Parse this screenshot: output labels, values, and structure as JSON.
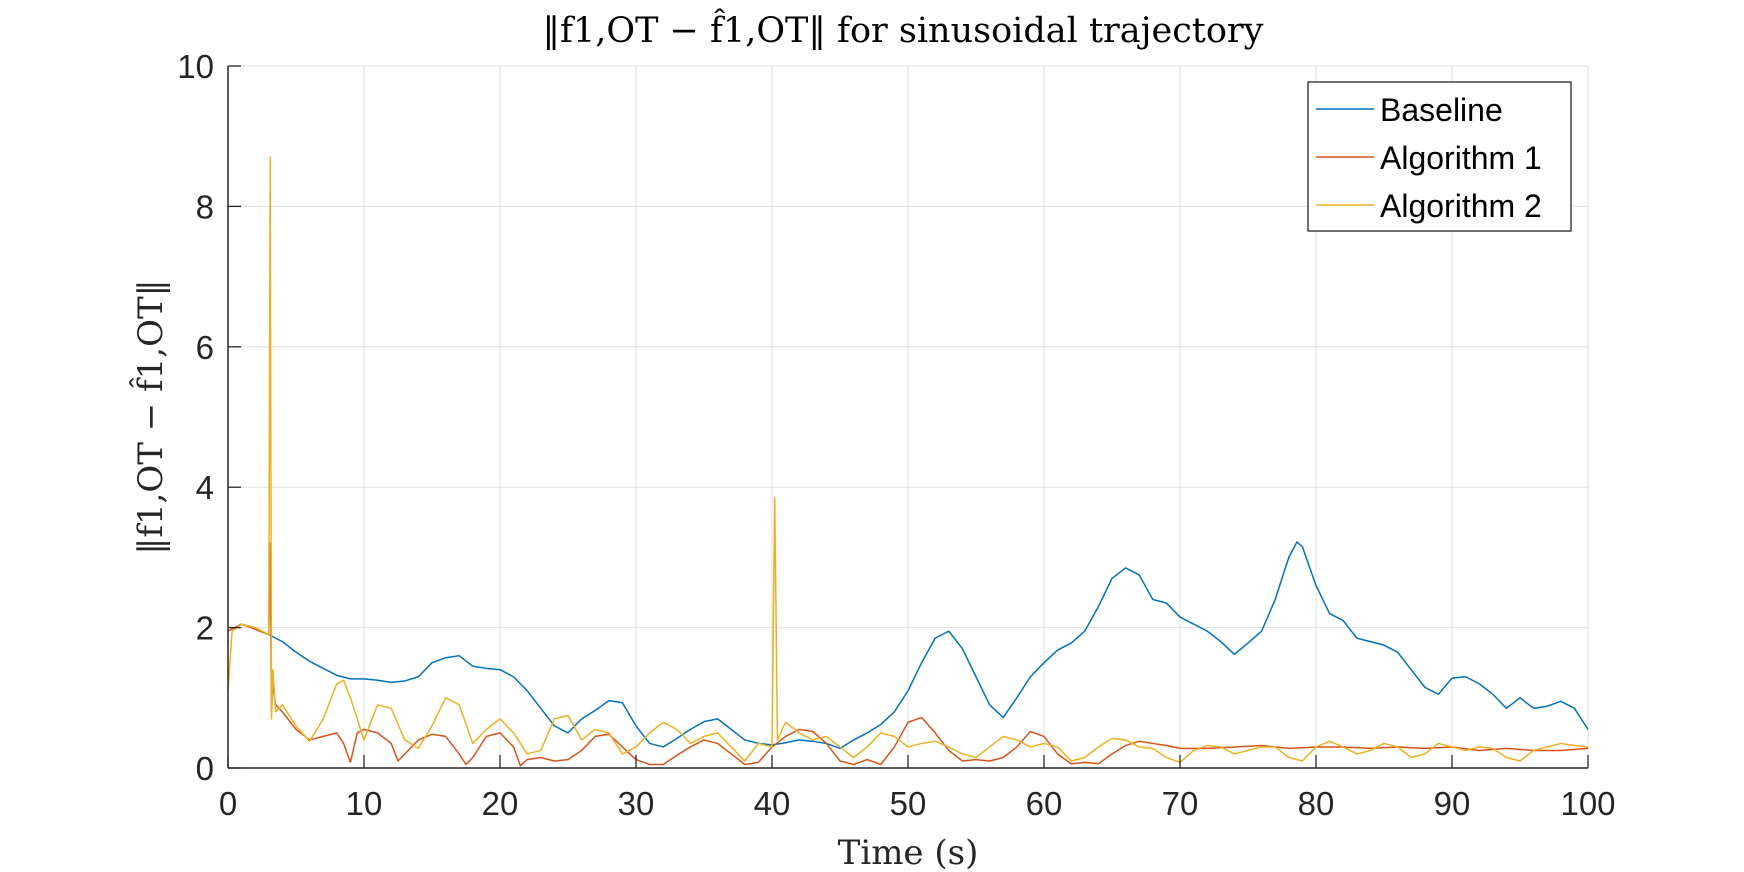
{
  "chart_data": {
    "type": "line",
    "title": "‖f1,OT − f̂1,OT‖ for sinusoidal trajectory",
    "xlabel": "Time (s)",
    "ylabel": "‖f1,OT − f̂1,OT‖",
    "xlim": [
      0,
      100
    ],
    "ylim": [
      0,
      10
    ],
    "xticks": [
      0,
      10,
      20,
      30,
      40,
      50,
      60,
      70,
      80,
      90,
      100
    ],
    "yticks": [
      0,
      2,
      4,
      6,
      8,
      10
    ],
    "grid": true,
    "legend_position": "top-right",
    "series": [
      {
        "name": "Baseline",
        "color": "#0072BD",
        "points": [
          [
            0,
            1.95
          ],
          [
            1,
            2.05
          ],
          [
            2,
            1.98
          ],
          [
            3,
            1.9
          ],
          [
            4,
            1.8
          ],
          [
            5,
            1.65
          ],
          [
            6,
            1.52
          ],
          [
            7,
            1.42
          ],
          [
            8,
            1.32
          ],
          [
            9,
            1.27
          ],
          [
            10,
            1.27
          ],
          [
            11,
            1.25
          ],
          [
            12,
            1.22
          ],
          [
            13,
            1.24
          ],
          [
            14,
            1.3
          ],
          [
            15,
            1.5
          ],
          [
            16,
            1.57
          ],
          [
            17,
            1.6
          ],
          [
            18,
            1.45
          ],
          [
            19,
            1.42
          ],
          [
            20,
            1.4
          ],
          [
            21,
            1.3
          ],
          [
            22,
            1.1
          ],
          [
            23,
            0.85
          ],
          [
            24,
            0.6
          ],
          [
            25,
            0.5
          ],
          [
            26,
            0.7
          ],
          [
            27,
            0.82
          ],
          [
            28,
            0.96
          ],
          [
            29,
            0.93
          ],
          [
            30,
            0.6
          ],
          [
            31,
            0.35
          ],
          [
            32,
            0.3
          ],
          [
            33,
            0.42
          ],
          [
            34,
            0.55
          ],
          [
            35,
            0.66
          ],
          [
            36,
            0.7
          ],
          [
            37,
            0.55
          ],
          [
            38,
            0.4
          ],
          [
            39,
            0.35
          ],
          [
            40,
            0.33
          ],
          [
            41,
            0.36
          ],
          [
            42,
            0.4
          ],
          [
            43,
            0.38
          ],
          [
            44,
            0.35
          ],
          [
            45,
            0.28
          ],
          [
            46,
            0.4
          ],
          [
            47,
            0.5
          ],
          [
            48,
            0.62
          ],
          [
            49,
            0.8
          ],
          [
            50,
            1.1
          ],
          [
            51,
            1.5
          ],
          [
            52,
            1.85
          ],
          [
            53,
            1.95
          ],
          [
            54,
            1.7
          ],
          [
            55,
            1.3
          ],
          [
            56,
            0.9
          ],
          [
            57,
            0.72
          ],
          [
            58,
            1.0
          ],
          [
            59,
            1.3
          ],
          [
            60,
            1.5
          ],
          [
            61,
            1.68
          ],
          [
            62,
            1.78
          ],
          [
            63,
            1.95
          ],
          [
            64,
            2.3
          ],
          [
            65,
            2.7
          ],
          [
            66,
            2.85
          ],
          [
            67,
            2.75
          ],
          [
            68,
            2.4
          ],
          [
            69,
            2.35
          ],
          [
            70,
            2.15
          ],
          [
            71,
            2.05
          ],
          [
            72,
            1.95
          ],
          [
            73,
            1.8
          ],
          [
            74,
            1.62
          ],
          [
            75,
            1.78
          ],
          [
            76,
            1.95
          ],
          [
            77,
            2.4
          ],
          [
            78,
            3.0
          ],
          [
            78.6,
            3.22
          ],
          [
            79,
            3.15
          ],
          [
            80,
            2.6
          ],
          [
            81,
            2.2
          ],
          [
            82,
            2.1
          ],
          [
            83,
            1.85
          ],
          [
            84,
            1.8
          ],
          [
            85,
            1.75
          ],
          [
            86,
            1.65
          ],
          [
            87,
            1.4
          ],
          [
            88,
            1.15
          ],
          [
            89,
            1.05
          ],
          [
            90,
            1.28
          ],
          [
            91,
            1.3
          ],
          [
            92,
            1.2
          ],
          [
            93,
            1.05
          ],
          [
            94,
            0.85
          ],
          [
            95,
            1.0
          ],
          [
            96,
            0.85
          ],
          [
            97,
            0.88
          ],
          [
            98,
            0.95
          ],
          [
            99,
            0.85
          ],
          [
            100,
            0.55
          ]
        ]
      },
      {
        "name": "Algorithm 1",
        "color": "#D95319",
        "points": [
          [
            0,
            1.95
          ],
          [
            1,
            2.05
          ],
          [
            2,
            1.98
          ],
          [
            3,
            1.9
          ],
          [
            3.1,
            3.2
          ],
          [
            3.2,
            0.8
          ],
          [
            3.3,
            1.2
          ],
          [
            3.5,
            0.9
          ],
          [
            4,
            0.8
          ],
          [
            5,
            0.55
          ],
          [
            6,
            0.4
          ],
          [
            7,
            0.45
          ],
          [
            8,
            0.5
          ],
          [
            8.5,
            0.35
          ],
          [
            9,
            0.08
          ],
          [
            9.5,
            0.5
          ],
          [
            10,
            0.55
          ],
          [
            11,
            0.5
          ],
          [
            12,
            0.35
          ],
          [
            12.5,
            0.1
          ],
          [
            13,
            0.2
          ],
          [
            14,
            0.4
          ],
          [
            15,
            0.48
          ],
          [
            16,
            0.45
          ],
          [
            17,
            0.2
          ],
          [
            17.5,
            0.05
          ],
          [
            18,
            0.15
          ],
          [
            19,
            0.45
          ],
          [
            20,
            0.5
          ],
          [
            21,
            0.3
          ],
          [
            21.5,
            0.03
          ],
          [
            22,
            0.12
          ],
          [
            23,
            0.15
          ],
          [
            24,
            0.1
          ],
          [
            25,
            0.12
          ],
          [
            26,
            0.25
          ],
          [
            27,
            0.45
          ],
          [
            28,
            0.48
          ],
          [
            29,
            0.3
          ],
          [
            30,
            0.12
          ],
          [
            31,
            0.05
          ],
          [
            32,
            0.05
          ],
          [
            33,
            0.18
          ],
          [
            34,
            0.3
          ],
          [
            35,
            0.4
          ],
          [
            36,
            0.35
          ],
          [
            37,
            0.2
          ],
          [
            38,
            0.05
          ],
          [
            39,
            0.08
          ],
          [
            40,
            0.3
          ],
          [
            41,
            0.45
          ],
          [
            42,
            0.55
          ],
          [
            43,
            0.52
          ],
          [
            44,
            0.35
          ],
          [
            45,
            0.1
          ],
          [
            46,
            0.05
          ],
          [
            47,
            0.12
          ],
          [
            48,
            0.05
          ],
          [
            49,
            0.3
          ],
          [
            50,
            0.65
          ],
          [
            51,
            0.72
          ],
          [
            52,
            0.5
          ],
          [
            53,
            0.25
          ],
          [
            54,
            0.1
          ],
          [
            55,
            0.12
          ],
          [
            56,
            0.1
          ],
          [
            57,
            0.15
          ],
          [
            58,
            0.3
          ],
          [
            59,
            0.52
          ],
          [
            60,
            0.45
          ],
          [
            61,
            0.2
          ],
          [
            62,
            0.06
          ],
          [
            63,
            0.08
          ],
          [
            64,
            0.06
          ],
          [
            65,
            0.2
          ],
          [
            66,
            0.32
          ],
          [
            67,
            0.38
          ],
          [
            68,
            0.35
          ],
          [
            69,
            0.32
          ],
          [
            70,
            0.28
          ],
          [
            72,
            0.28
          ],
          [
            74,
            0.3
          ],
          [
            76,
            0.32
          ],
          [
            78,
            0.28
          ],
          [
            80,
            0.3
          ],
          [
            82,
            0.3
          ],
          [
            84,
            0.28
          ],
          [
            86,
            0.3
          ],
          [
            88,
            0.28
          ],
          [
            90,
            0.3
          ],
          [
            92,
            0.25
          ],
          [
            94,
            0.28
          ],
          [
            96,
            0.25
          ],
          [
            98,
            0.25
          ],
          [
            100,
            0.28
          ]
        ]
      },
      {
        "name": "Algorithm 2",
        "color": "#EDB120",
        "points": [
          [
            0,
            1.1
          ],
          [
            0.3,
            1.95
          ],
          [
            1,
            2.05
          ],
          [
            2,
            2.0
          ],
          [
            3,
            1.9
          ],
          [
            3.1,
            8.7
          ],
          [
            3.2,
            0.7
          ],
          [
            3.3,
            1.4
          ],
          [
            3.5,
            0.8
          ],
          [
            4,
            0.9
          ],
          [
            5,
            0.6
          ],
          [
            6,
            0.38
          ],
          [
            7,
            0.7
          ],
          [
            8,
            1.2
          ],
          [
            8.5,
            1.25
          ],
          [
            9,
            1.0
          ],
          [
            10,
            0.4
          ],
          [
            11,
            0.9
          ],
          [
            12,
            0.85
          ],
          [
            13,
            0.4
          ],
          [
            14,
            0.28
          ],
          [
            15,
            0.6
          ],
          [
            16,
            1.0
          ],
          [
            17,
            0.9
          ],
          [
            18,
            0.35
          ],
          [
            19,
            0.55
          ],
          [
            20,
            0.7
          ],
          [
            21,
            0.5
          ],
          [
            22,
            0.2
          ],
          [
            23,
            0.25
          ],
          [
            24,
            0.7
          ],
          [
            25,
            0.75
          ],
          [
            26,
            0.4
          ],
          [
            27,
            0.55
          ],
          [
            28,
            0.5
          ],
          [
            29,
            0.2
          ],
          [
            30,
            0.3
          ],
          [
            31,
            0.5
          ],
          [
            32,
            0.65
          ],
          [
            33,
            0.55
          ],
          [
            34,
            0.35
          ],
          [
            35,
            0.45
          ],
          [
            36,
            0.5
          ],
          [
            37,
            0.3
          ],
          [
            38,
            0.1
          ],
          [
            39,
            0.35
          ],
          [
            40,
            0.3
          ],
          [
            40.2,
            3.85
          ],
          [
            40.4,
            0.4
          ],
          [
            41,
            0.65
          ],
          [
            42,
            0.5
          ],
          [
            43,
            0.4
          ],
          [
            44,
            0.45
          ],
          [
            45,
            0.3
          ],
          [
            46,
            0.15
          ],
          [
            47,
            0.3
          ],
          [
            48,
            0.5
          ],
          [
            49,
            0.45
          ],
          [
            50,
            0.3
          ],
          [
            51,
            0.35
          ],
          [
            52,
            0.38
          ],
          [
            53,
            0.3
          ],
          [
            54,
            0.2
          ],
          [
            55,
            0.15
          ],
          [
            56,
            0.3
          ],
          [
            57,
            0.45
          ],
          [
            58,
            0.4
          ],
          [
            59,
            0.3
          ],
          [
            60,
            0.35
          ],
          [
            61,
            0.3
          ],
          [
            62,
            0.1
          ],
          [
            63,
            0.15
          ],
          [
            64,
            0.3
          ],
          [
            65,
            0.42
          ],
          [
            66,
            0.4
          ],
          [
            67,
            0.3
          ],
          [
            68,
            0.28
          ],
          [
            69,
            0.15
          ],
          [
            70,
            0.08
          ],
          [
            71,
            0.25
          ],
          [
            72,
            0.32
          ],
          [
            73,
            0.3
          ],
          [
            74,
            0.2
          ],
          [
            75,
            0.25
          ],
          [
            76,
            0.3
          ],
          [
            77,
            0.3
          ],
          [
            78,
            0.15
          ],
          [
            79,
            0.1
          ],
          [
            80,
            0.3
          ],
          [
            81,
            0.38
          ],
          [
            82,
            0.3
          ],
          [
            83,
            0.2
          ],
          [
            84,
            0.25
          ],
          [
            85,
            0.35
          ],
          [
            86,
            0.3
          ],
          [
            87,
            0.15
          ],
          [
            88,
            0.2
          ],
          [
            89,
            0.35
          ],
          [
            90,
            0.3
          ],
          [
            91,
            0.25
          ],
          [
            92,
            0.3
          ],
          [
            93,
            0.28
          ],
          [
            94,
            0.15
          ],
          [
            95,
            0.1
          ],
          [
            96,
            0.25
          ],
          [
            97,
            0.3
          ],
          [
            98,
            0.35
          ],
          [
            99,
            0.32
          ],
          [
            100,
            0.3
          ]
        ]
      }
    ]
  }
}
